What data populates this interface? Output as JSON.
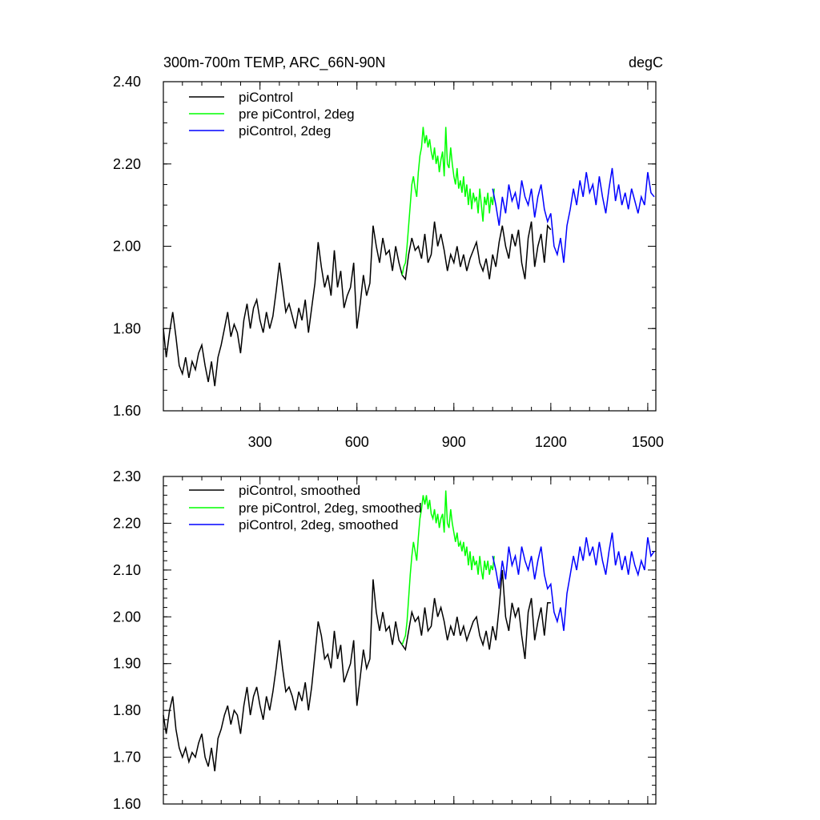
{
  "chart_data": [
    {
      "id": "top",
      "type": "line",
      "title": "300m-700m TEMP, ARC_66N-90N",
      "units": "degC",
      "xlim": [
        1,
        1525
      ],
      "ylim": [
        1.6,
        2.4
      ],
      "yticks": [
        "1.60",
        "1.80",
        "2.00",
        "2.20",
        "2.40"
      ],
      "xticks": [
        "300",
        "600",
        "900",
        "1200",
        "1500"
      ],
      "series": [
        {
          "name": "piControl",
          "color": "#000000",
          "x": [
            1,
            10,
            20,
            30,
            40,
            50,
            60,
            70,
            80,
            90,
            100,
            110,
            120,
            130,
            140,
            150,
            160,
            170,
            180,
            190,
            200,
            210,
            220,
            230,
            240,
            250,
            260,
            270,
            280,
            290,
            300,
            310,
            320,
            330,
            340,
            350,
            360,
            370,
            380,
            390,
            400,
            410,
            420,
            430,
            440,
            450,
            460,
            470,
            480,
            490,
            500,
            510,
            520,
            530,
            540,
            550,
            560,
            570,
            580,
            590,
            600,
            610,
            620,
            630,
            640,
            650,
            660,
            670,
            680,
            690,
            700,
            710,
            720,
            730,
            740,
            750,
            760,
            770,
            780,
            790,
            800,
            810,
            820,
            830,
            840,
            850,
            860,
            870,
            880,
            890,
            900,
            910,
            920,
            930,
            940,
            950,
            960,
            970,
            980,
            990,
            1000,
            1010,
            1020,
            1030,
            1040,
            1050,
            1060,
            1070,
            1080,
            1090,
            1100,
            1110,
            1120,
            1130,
            1140,
            1150,
            1160,
            1170,
            1180,
            1190,
            1200
          ],
          "values": [
            1.8,
            1.73,
            1.79,
            1.84,
            1.78,
            1.71,
            1.69,
            1.73,
            1.68,
            1.72,
            1.7,
            1.74,
            1.76,
            1.71,
            1.67,
            1.72,
            1.66,
            1.73,
            1.76,
            1.8,
            1.84,
            1.78,
            1.81,
            1.79,
            1.74,
            1.82,
            1.86,
            1.8,
            1.85,
            1.87,
            1.82,
            1.79,
            1.84,
            1.8,
            1.83,
            1.89,
            1.96,
            1.9,
            1.84,
            1.86,
            1.83,
            1.8,
            1.85,
            1.82,
            1.87,
            1.79,
            1.85,
            1.91,
            2.01,
            1.95,
            1.9,
            1.93,
            1.88,
            1.99,
            1.9,
            1.94,
            1.85,
            1.88,
            1.9,
            1.96,
            1.8,
            1.86,
            1.93,
            1.88,
            1.91,
            2.05,
            2.0,
            1.96,
            2.02,
            1.98,
            1.99,
            1.94,
            2.0,
            1.96,
            1.93,
            1.92,
            1.98,
            2.02,
            1.99,
            2.0,
            1.97,
            2.03,
            1.96,
            1.98,
            2.06,
            2.0,
            2.03,
            1.99,
            1.94,
            1.98,
            1.96,
            2.0,
            1.95,
            1.98,
            1.94,
            1.97,
            1.99,
            2.01,
            1.96,
            1.94,
            1.97,
            1.92,
            1.98,
            1.95,
            2.01,
            2.05,
            2.0,
            1.97,
            2.03,
            2.0,
            2.04,
            1.96,
            1.92,
            2.02,
            2.06,
            1.95,
            2.0,
            2.03,
            1.96,
            2.05,
            2.04
          ]
        },
        {
          "name": "pre piControl, 2deg",
          "color": "#00ff00",
          "x": [
            740,
            745,
            750,
            755,
            760,
            765,
            770,
            775,
            780,
            785,
            790,
            795,
            800,
            805,
            810,
            815,
            820,
            825,
            830,
            835,
            840,
            845,
            850,
            855,
            860,
            865,
            870,
            875,
            880,
            885,
            890,
            895,
            900,
            905,
            910,
            915,
            920,
            925,
            930,
            935,
            940,
            945,
            950,
            955,
            960,
            965,
            970,
            975,
            980,
            985,
            990,
            995,
            1000,
            1005,
            1010,
            1015,
            1020,
            1025
          ],
          "values": [
            1.93,
            1.95,
            1.96,
            2.0,
            2.05,
            2.1,
            2.15,
            2.17,
            2.14,
            2.12,
            2.18,
            2.22,
            2.24,
            2.29,
            2.25,
            2.27,
            2.24,
            2.26,
            2.23,
            2.21,
            2.24,
            2.2,
            2.22,
            2.18,
            2.21,
            2.23,
            2.17,
            2.29,
            2.2,
            2.19,
            2.24,
            2.2,
            2.17,
            2.15,
            2.19,
            2.14,
            2.16,
            2.13,
            2.17,
            2.12,
            2.15,
            2.1,
            2.14,
            2.09,
            2.13,
            2.11,
            2.12,
            2.08,
            2.14,
            2.1,
            2.06,
            2.12,
            2.1,
            2.13,
            2.08,
            2.12,
            2.1,
            2.14
          ]
        },
        {
          "name": "piControl, 2deg",
          "color": "#0000ff",
          "x": [
            1020,
            1030,
            1040,
            1050,
            1060,
            1070,
            1080,
            1090,
            1100,
            1110,
            1120,
            1130,
            1140,
            1150,
            1160,
            1170,
            1180,
            1190,
            1200,
            1210,
            1220,
            1230,
            1240,
            1250,
            1260,
            1270,
            1280,
            1290,
            1300,
            1310,
            1320,
            1330,
            1340,
            1350,
            1360,
            1370,
            1380,
            1390,
            1400,
            1410,
            1420,
            1430,
            1440,
            1450,
            1460,
            1470,
            1480,
            1490,
            1500,
            1510,
            1520
          ],
          "values": [
            2.14,
            2.1,
            2.05,
            2.12,
            2.08,
            2.15,
            2.11,
            2.13,
            2.09,
            2.16,
            2.12,
            2.1,
            2.14,
            2.07,
            2.12,
            2.15,
            2.09,
            2.06,
            2.08,
            2.0,
            1.98,
            2.02,
            1.96,
            2.05,
            2.09,
            2.14,
            2.1,
            2.16,
            2.12,
            2.18,
            2.13,
            2.15,
            2.1,
            2.17,
            2.12,
            2.08,
            2.14,
            2.19,
            2.11,
            2.15,
            2.1,
            2.13,
            2.09,
            2.14,
            2.11,
            2.08,
            2.12,
            2.1,
            2.18,
            2.13,
            2.12
          ]
        }
      ]
    },
    {
      "id": "bottom",
      "type": "line",
      "title": "",
      "xlim": [
        1,
        1525
      ],
      "ylim": [
        1.6,
        2.3
      ],
      "yticks": [
        "1.60",
        "1.70",
        "1.80",
        "1.90",
        "2.00",
        "2.10",
        "2.20",
        "2.30"
      ],
      "series": [
        {
          "name": "piControl, smoothed",
          "color": "#000000",
          "x": [
            1,
            10,
            20,
            30,
            40,
            50,
            60,
            70,
            80,
            90,
            100,
            110,
            120,
            130,
            140,
            150,
            160,
            170,
            180,
            190,
            200,
            210,
            220,
            230,
            240,
            250,
            260,
            270,
            280,
            290,
            300,
            310,
            320,
            330,
            340,
            350,
            360,
            370,
            380,
            390,
            400,
            410,
            420,
            430,
            440,
            450,
            460,
            470,
            480,
            490,
            500,
            510,
            520,
            530,
            540,
            550,
            560,
            570,
            580,
            590,
            600,
            610,
            620,
            630,
            640,
            650,
            660,
            670,
            680,
            690,
            700,
            710,
            720,
            730,
            740,
            750,
            760,
            770,
            780,
            790,
            800,
            810,
            820,
            830,
            840,
            850,
            860,
            870,
            880,
            890,
            900,
            910,
            920,
            930,
            940,
            950,
            960,
            970,
            980,
            990,
            1000,
            1010,
            1020,
            1030,
            1040,
            1050,
            1060,
            1070,
            1080,
            1090,
            1100,
            1110,
            1120,
            1130,
            1140,
            1150,
            1160,
            1170,
            1180,
            1190,
            1200
          ],
          "values": [
            1.79,
            1.75,
            1.8,
            1.83,
            1.76,
            1.72,
            1.7,
            1.72,
            1.69,
            1.71,
            1.7,
            1.73,
            1.75,
            1.7,
            1.68,
            1.72,
            1.67,
            1.74,
            1.76,
            1.79,
            1.81,
            1.77,
            1.8,
            1.79,
            1.75,
            1.81,
            1.85,
            1.79,
            1.83,
            1.85,
            1.81,
            1.78,
            1.83,
            1.8,
            1.84,
            1.89,
            1.95,
            1.89,
            1.84,
            1.85,
            1.83,
            1.8,
            1.84,
            1.82,
            1.86,
            1.8,
            1.85,
            1.92,
            1.99,
            1.96,
            1.91,
            1.92,
            1.89,
            1.97,
            1.91,
            1.94,
            1.86,
            1.88,
            1.9,
            1.95,
            1.81,
            1.87,
            1.93,
            1.89,
            1.91,
            2.08,
            2.01,
            1.97,
            2.01,
            1.97,
            1.98,
            1.94,
            1.99,
            1.95,
            1.94,
            1.93,
            1.97,
            2.01,
            1.99,
            2.0,
            1.96,
            2.02,
            1.97,
            1.98,
            2.04,
            2.0,
            2.02,
            1.99,
            1.95,
            1.98,
            1.96,
            2.0,
            1.96,
            1.98,
            1.95,
            1.97,
            1.99,
            2.0,
            1.96,
            1.94,
            1.97,
            1.93,
            1.98,
            1.95,
            2.02,
            2.1,
            2.0,
            1.97,
            2.03,
            2.0,
            2.02,
            1.96,
            1.91,
            2.01,
            2.04,
            1.95,
            1.99,
            2.02,
            1.96,
            2.03,
            2.03
          ]
        },
        {
          "name": "pre piControl, 2deg, smoothed",
          "color": "#00ff00",
          "x": [
            740,
            745,
            750,
            755,
            760,
            765,
            770,
            775,
            780,
            785,
            790,
            795,
            800,
            805,
            810,
            815,
            820,
            825,
            830,
            835,
            840,
            845,
            850,
            855,
            860,
            865,
            870,
            875,
            880,
            885,
            890,
            895,
            900,
            905,
            910,
            915,
            920,
            925,
            930,
            935,
            940,
            945,
            950,
            955,
            960,
            965,
            970,
            975,
            980,
            985,
            990,
            995,
            1000,
            1005,
            1010,
            1015,
            1020,
            1025
          ],
          "values": [
            1.94,
            1.95,
            1.96,
            1.99,
            2.04,
            2.09,
            2.13,
            2.16,
            2.14,
            2.12,
            2.17,
            2.21,
            2.23,
            2.26,
            2.24,
            2.26,
            2.23,
            2.25,
            2.22,
            2.21,
            2.23,
            2.2,
            2.22,
            2.19,
            2.21,
            2.22,
            2.18,
            2.27,
            2.2,
            2.19,
            2.23,
            2.2,
            2.18,
            2.16,
            2.18,
            2.15,
            2.16,
            2.14,
            2.16,
            2.13,
            2.15,
            2.11,
            2.14,
            2.1,
            2.13,
            2.11,
            2.12,
            2.09,
            2.13,
            2.1,
            2.08,
            2.12,
            2.1,
            2.12,
            2.09,
            2.11,
            2.1,
            2.13
          ]
        },
        {
          "name": "piControl, 2deg, smoothed",
          "color": "#0000ff",
          "x": [
            1020,
            1030,
            1040,
            1050,
            1060,
            1070,
            1080,
            1090,
            1100,
            1110,
            1120,
            1130,
            1140,
            1150,
            1160,
            1170,
            1180,
            1190,
            1200,
            1210,
            1220,
            1230,
            1240,
            1250,
            1260,
            1270,
            1280,
            1290,
            1300,
            1310,
            1320,
            1330,
            1340,
            1350,
            1360,
            1370,
            1380,
            1390,
            1400,
            1410,
            1420,
            1430,
            1440,
            1450,
            1460,
            1470,
            1480,
            1490,
            1500,
            1510,
            1520
          ],
          "values": [
            2.13,
            2.1,
            2.06,
            2.12,
            2.08,
            2.15,
            2.11,
            2.13,
            2.09,
            2.15,
            2.12,
            2.1,
            2.13,
            2.08,
            2.12,
            2.15,
            2.09,
            2.06,
            2.07,
            2.01,
            1.99,
            2.02,
            1.97,
            2.05,
            2.09,
            2.13,
            2.1,
            2.15,
            2.12,
            2.17,
            2.13,
            2.15,
            2.11,
            2.16,
            2.12,
            2.09,
            2.14,
            2.18,
            2.11,
            2.14,
            2.1,
            2.13,
            2.09,
            2.14,
            2.11,
            2.09,
            2.12,
            2.1,
            2.17,
            2.13,
            2.14
          ]
        }
      ]
    }
  ]
}
